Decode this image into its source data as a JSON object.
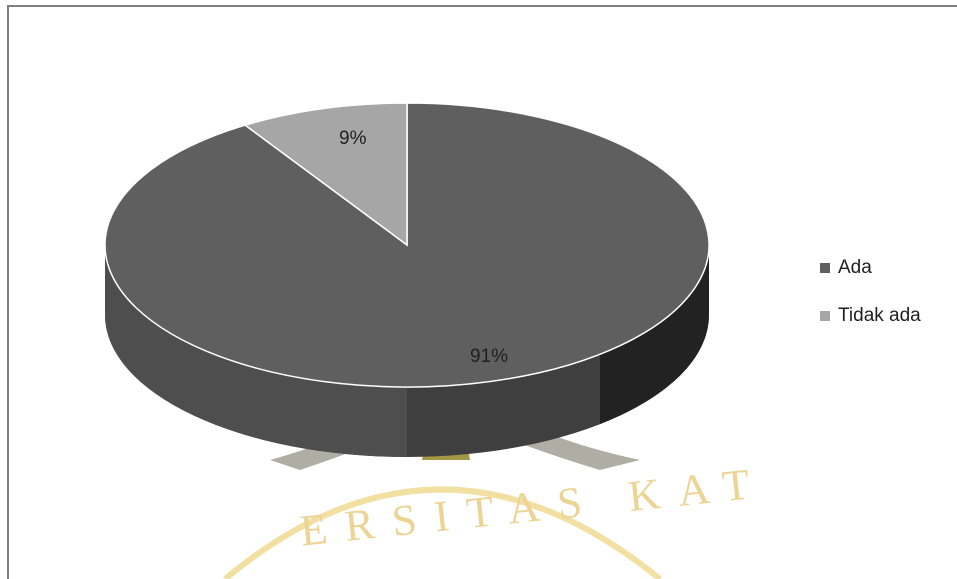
{
  "chart_data": {
    "type": "pie",
    "title": "",
    "categories": [
      "Ada",
      "Tidak ada"
    ],
    "values": [
      91,
      9
    ],
    "data_labels": [
      "91%",
      "9%"
    ],
    "colors": [
      "#5f5f5f",
      "#a6a6a6"
    ],
    "legend_position": "right",
    "style": "3d"
  },
  "watermark": {
    "text": "ERSITAS KAT",
    "color": "#e8c96a"
  }
}
